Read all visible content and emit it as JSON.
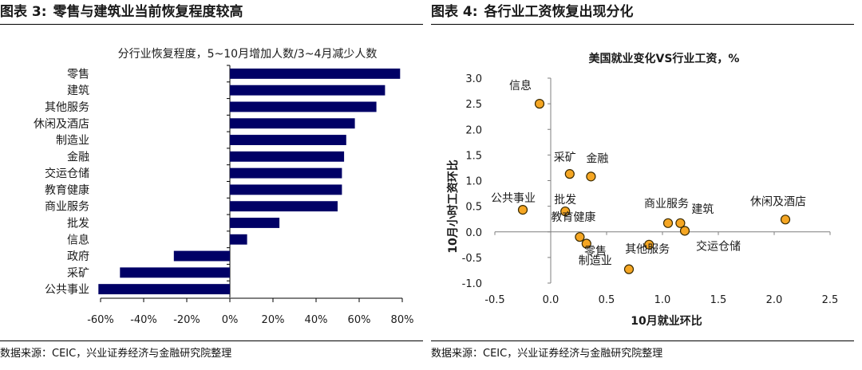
{
  "left_figure": {
    "number_label": "图表 3:",
    "title": "零售与建筑业当前恢复程度较高",
    "source": "数据来源：CEIC，兴业证券经济与金融研究院整理"
  },
  "right_figure": {
    "number_label": "图表 4:",
    "title": "各行业工资恢复出现分化",
    "source": "数据来源：CEIC，兴业证券经济与金融研究院整理"
  },
  "colors": {
    "bar": "#000066",
    "point_fill": "#F5A623",
    "point_stroke": "#3a2a00",
    "axis": "#7f7f7f"
  },
  "chart_data": [
    {
      "type": "bar",
      "orientation": "horizontal",
      "title": "分行业恢复程度，5~10月增加人数/3~4月减少人数",
      "categories": [
        "零售",
        "建筑",
        "其他服务",
        "休闲及酒店",
        "制造业",
        "金融",
        "交运仓储",
        "教育健康",
        "商业服务",
        "批发",
        "信息",
        "政府",
        "采矿",
        "公共事业"
      ],
      "values": [
        79,
        72,
        68,
        58,
        54,
        53,
        52,
        52,
        50,
        23,
        8,
        -26,
        -51,
        -61
      ],
      "xlim": [
        -60,
        80
      ],
      "xticks": [
        "-60%",
        "-40%",
        "-20%",
        "0%",
        "20%",
        "40%",
        "60%",
        "80%"
      ],
      "xlabel": "",
      "ylabel": ""
    },
    {
      "type": "scatter",
      "title": "美国就业变化VS行业工资，%",
      "xlabel": "10月就业环比",
      "ylabel": "10月小时工资环比",
      "xlim": [
        -0.5,
        2.5
      ],
      "ylim": [
        -1.0,
        3.0
      ],
      "xticks": [
        "-0.5",
        "0.0",
        "0.5",
        "1.0",
        "1.5",
        "2.0",
        "2.5"
      ],
      "yticks": [
        "3.0",
        "2.5",
        "2.0",
        "1.5",
        "1.0",
        "0.5",
        "0.0",
        "-0.5",
        "-1.0"
      ],
      "points": [
        {
          "label": "信息",
          "x": -0.1,
          "y": 2.5
        },
        {
          "label": "采矿",
          "x": 0.17,
          "y": 1.13
        },
        {
          "label": "金融",
          "x": 0.36,
          "y": 1.08
        },
        {
          "label": "公共事业",
          "x": -0.25,
          "y": 0.43
        },
        {
          "label": "批发",
          "x": 0.13,
          "y": 0.4
        },
        {
          "label": "教育健康",
          "x": 0.26,
          "y": -0.1
        },
        {
          "label": "制造业",
          "x": 0.32,
          "y": -0.23
        },
        {
          "label": "零售",
          "x": 0.7,
          "y": -0.73
        },
        {
          "label": "其他服务",
          "x": 0.88,
          "y": -0.25
        },
        {
          "label": "商业服务",
          "x": 1.05,
          "y": 0.17
        },
        {
          "label": "建筑",
          "x": 1.16,
          "y": 0.17
        },
        {
          "label": "交运仓储",
          "x": 1.2,
          "y": 0.02
        },
        {
          "label": "休闲及酒店",
          "x": 2.1,
          "y": 0.24
        }
      ]
    }
  ]
}
